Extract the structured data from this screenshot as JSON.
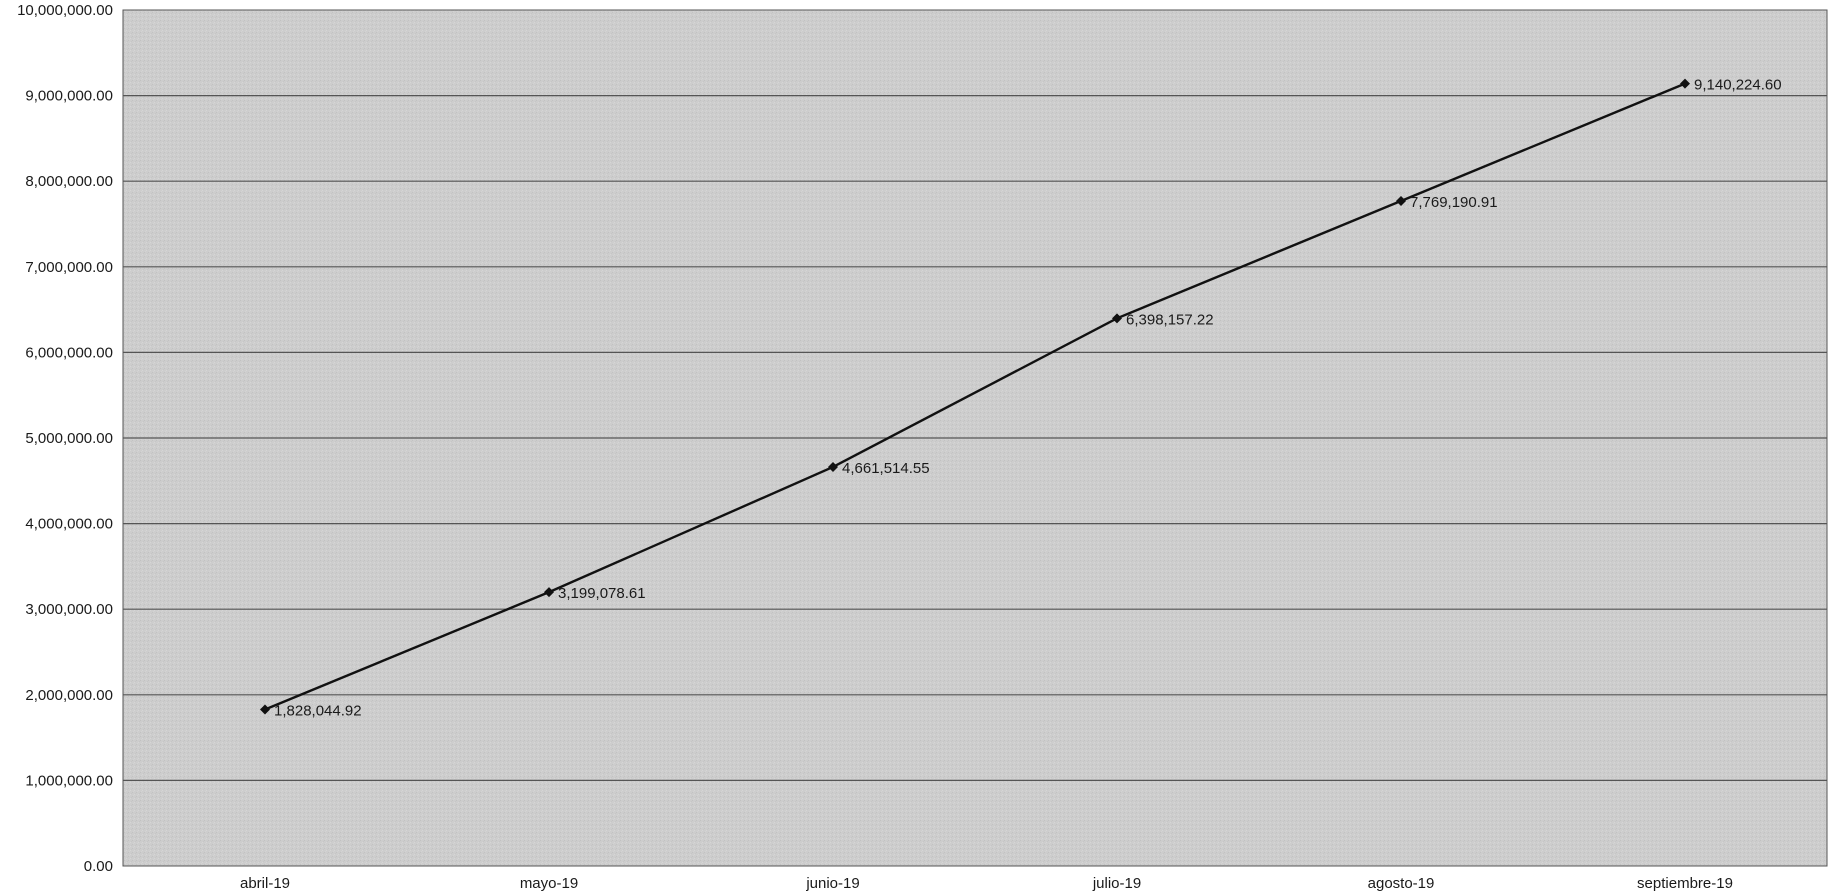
{
  "chart_data": {
    "type": "line",
    "title": "",
    "xlabel": "",
    "ylabel": "",
    "categories": [
      "abril-19",
      "mayo-19",
      "junio-19",
      "julio-19",
      "agosto-19",
      "septiembre-19"
    ],
    "series": [
      {
        "values": [
          1828044.92,
          3199078.61,
          4661514.55,
          6398157.22,
          7769190.91,
          9140224.6
        ],
        "labels": [
          "1,828,044.92",
          "3,199,078.61",
          "4,661,514.55",
          "6,398,157.22",
          "7,769,190.91",
          "9,140,224.60"
        ],
        "marker": "diamond",
        "color": "#111111"
      }
    ],
    "ylim": [
      0,
      10000000
    ],
    "y_ticks": [
      {
        "value": 0,
        "label": "0.00"
      },
      {
        "value": 1000000,
        "label": "1,000,000.00"
      },
      {
        "value": 2000000,
        "label": "2,000,000.00"
      },
      {
        "value": 3000000,
        "label": "3,000,000.00"
      },
      {
        "value": 4000000,
        "label": "4,000,000.00"
      },
      {
        "value": 5000000,
        "label": "5,000,000.00"
      },
      {
        "value": 6000000,
        "label": "6,000,000.00"
      },
      {
        "value": 7000000,
        "label": "7,000,000.00"
      },
      {
        "value": 8000000,
        "label": "8,000,000.00"
      },
      {
        "value": 9000000,
        "label": "9,000,000.00"
      },
      {
        "value": 10000000,
        "label": "10,000,000.00"
      }
    ],
    "grid": true,
    "legend": "none",
    "plot_background": "#cfcfcf",
    "gridline_color": "#555555"
  }
}
